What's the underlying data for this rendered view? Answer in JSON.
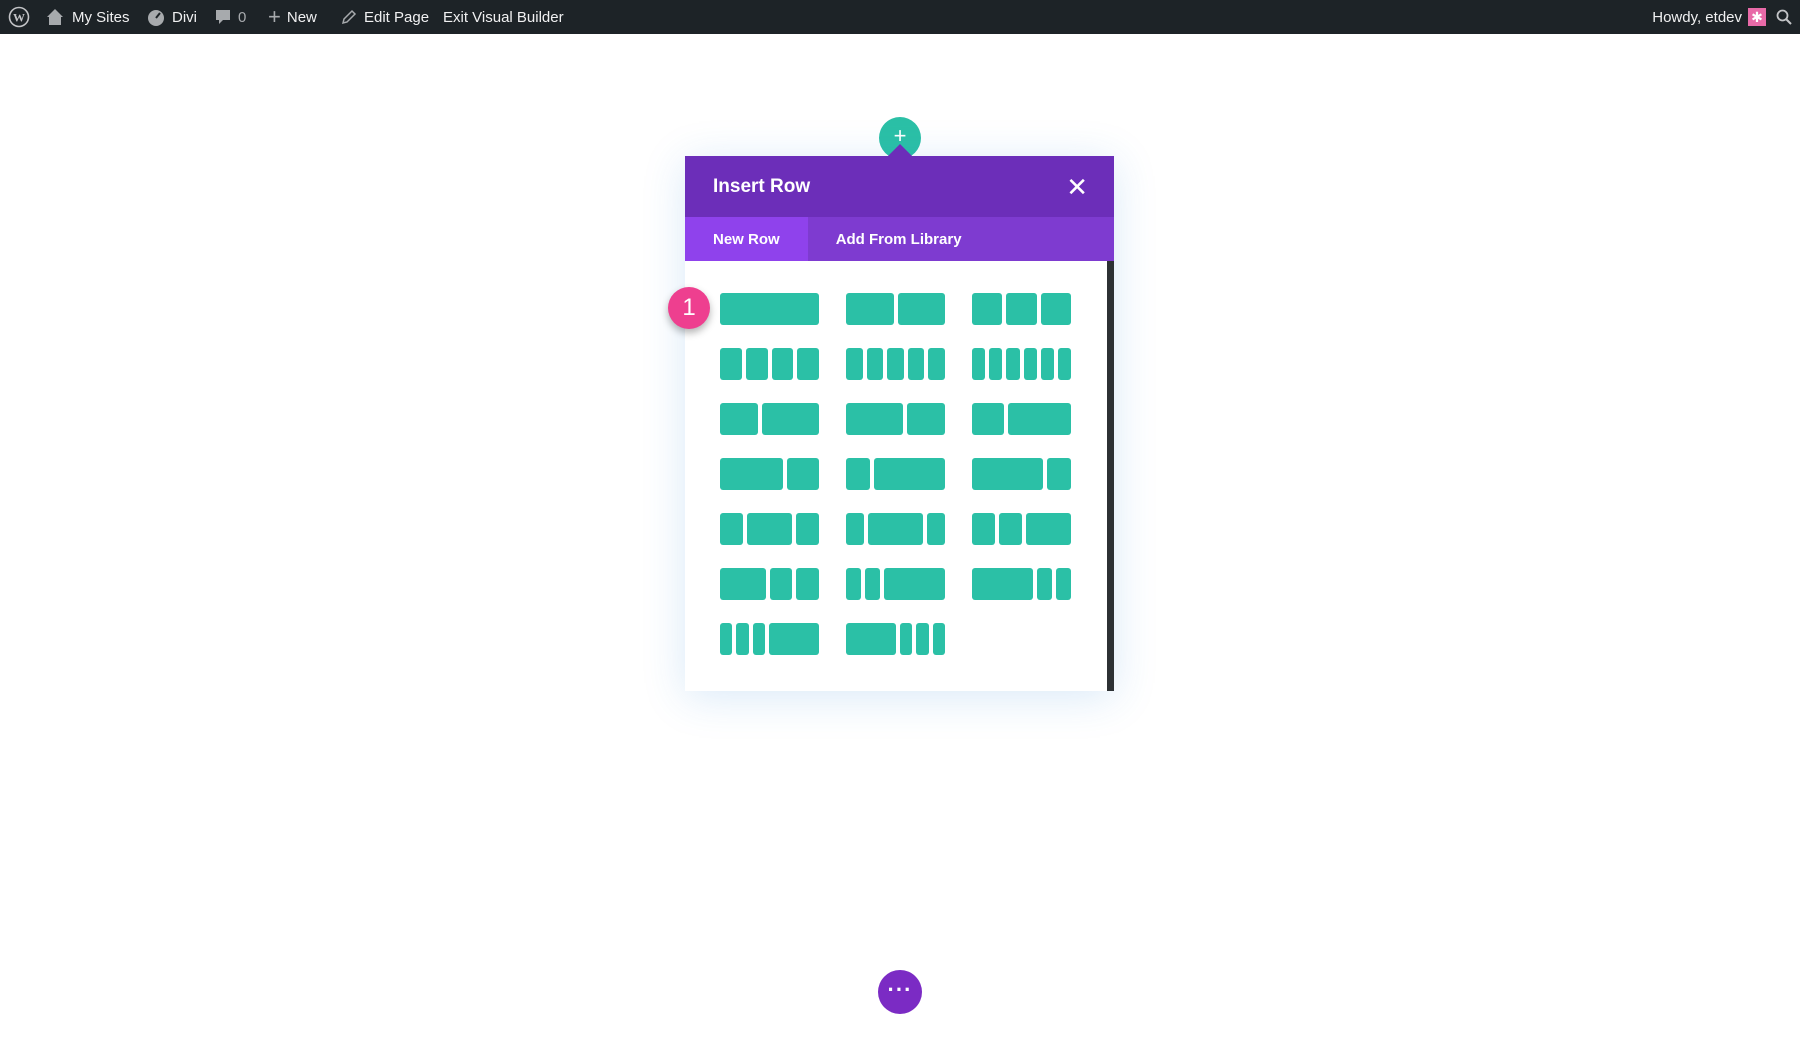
{
  "adminbar": {
    "my_sites": "My Sites",
    "divi": "Divi",
    "comments": "0",
    "new": "New",
    "edit_page": "Edit Page",
    "exit_vb": "Exit Visual Builder",
    "howdy": "Howdy, etdev"
  },
  "modal": {
    "title": "Insert Row",
    "tabs": [
      "New Row",
      "Add From Library"
    ],
    "active_tab": "New Row"
  },
  "badge": "1",
  "colors": {
    "adminbar": "#1d2327",
    "teal": "#2bc0a6",
    "purple_header": "#6c2eb9",
    "purple_tabs": "#7e3bd0",
    "active_tab": "#8f42ec",
    "badge": "#ee3f8f"
  },
  "layouts": [
    [
      1
    ],
    [
      1,
      1
    ],
    [
      1,
      1,
      1
    ],
    [
      1,
      1,
      1,
      1
    ],
    [
      1,
      1,
      1,
      1,
      1
    ],
    [
      1,
      1,
      1,
      1,
      1,
      1
    ],
    [
      2,
      3
    ],
    [
      3,
      2
    ],
    [
      1,
      2
    ],
    [
      2,
      1
    ],
    [
      1,
      3
    ],
    [
      3,
      1
    ],
    [
      1,
      2,
      1
    ],
    [
      1,
      3,
      1
    ],
    [
      1,
      1,
      2
    ],
    [
      2,
      1,
      1
    ],
    [
      1,
      1,
      4
    ],
    [
      4,
      1,
      1
    ],
    [
      1,
      1,
      1,
      4
    ],
    [
      4,
      1,
      1,
      1
    ]
  ]
}
